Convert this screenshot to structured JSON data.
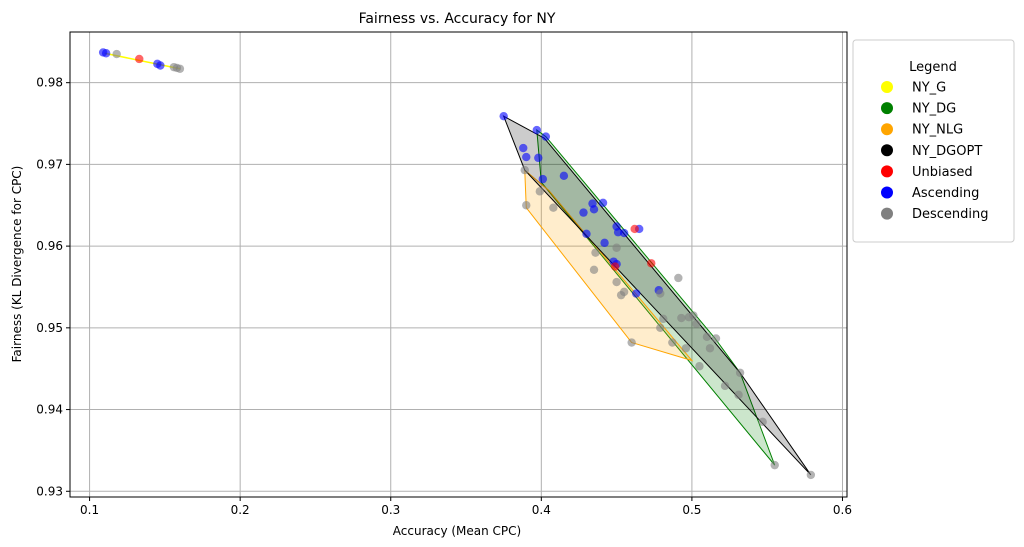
{
  "chart_data": {
    "type": "scatter",
    "title": "Fairness vs. Accuracy for NY",
    "xlabel": "Accuracy (Mean CPC)",
    "ylabel": "Fairness (KL Divergence for CPC)",
    "xlim": [
      0.087,
      0.603
    ],
    "ylim": [
      0.9293,
      0.9862
    ],
    "xticks": [
      0.1,
      0.2,
      0.3,
      0.4,
      0.5,
      0.6
    ],
    "yticks": [
      0.93,
      0.94,
      0.95,
      0.96,
      0.97,
      0.98
    ],
    "grid": true,
    "legend": {
      "title": "Legend",
      "placement": "outside-right-top",
      "entries": [
        {
          "label": "NY_G",
          "color": "#ffff00"
        },
        {
          "label": "NY_DG",
          "color": "#008000"
        },
        {
          "label": "NY_NLG",
          "color": "#ffa500"
        },
        {
          "label": "NY_DGOPT",
          "color": "#000000"
        },
        {
          "label": "Unbiased",
          "color": "#ff0000"
        },
        {
          "label": "Ascending",
          "color": "#0000ff"
        },
        {
          "label": "Descending",
          "color": "#808080"
        }
      ]
    },
    "hulls": [
      {
        "name": "NY_G",
        "color": "#ffff00",
        "points": [
          [
            0.11,
            0.9836
          ],
          [
            0.16,
            0.9817
          ]
        ]
      },
      {
        "name": "NY_DG",
        "color": "#008000",
        "points": [
          [
            0.397,
            0.9742
          ],
          [
            0.403,
            0.9734
          ],
          [
            0.515,
            0.9488
          ],
          [
            0.532,
            0.9445
          ],
          [
            0.555,
            0.9332
          ],
          [
            0.4,
            0.9678
          ]
        ]
      },
      {
        "name": "NY_NLG",
        "color": "#ffa500",
        "points": [
          [
            0.389,
            0.9693
          ],
          [
            0.405,
            0.9668
          ],
          [
            0.5,
            0.946
          ],
          [
            0.46,
            0.9482
          ],
          [
            0.39,
            0.9647
          ]
        ]
      },
      {
        "name": "NY_DGOPT",
        "color": "#000000",
        "points": [
          [
            0.375,
            0.9759
          ],
          [
            0.402,
            0.9732
          ],
          [
            0.532,
            0.9445
          ],
          [
            0.579,
            0.932
          ],
          [
            0.389,
            0.9693
          ]
        ]
      }
    ],
    "series": [
      {
        "name": "Ascending",
        "color": "#0000ff",
        "points": [
          [
            0.109,
            0.9837
          ],
          [
            0.111,
            0.9836
          ],
          [
            0.145,
            0.9823
          ],
          [
            0.147,
            0.9821
          ],
          [
            0.375,
            0.9759
          ],
          [
            0.388,
            0.972
          ],
          [
            0.39,
            0.9709
          ],
          [
            0.398,
            0.9708
          ],
          [
            0.397,
            0.9742
          ],
          [
            0.403,
            0.9734
          ],
          [
            0.401,
            0.9682
          ],
          [
            0.415,
            0.9686
          ],
          [
            0.434,
            0.9652
          ],
          [
            0.441,
            0.9653
          ],
          [
            0.435,
            0.9645
          ],
          [
            0.428,
            0.9641
          ],
          [
            0.45,
            0.9624
          ],
          [
            0.451,
            0.9617
          ],
          [
            0.455,
            0.9616
          ],
          [
            0.465,
            0.9621
          ],
          [
            0.43,
            0.9615
          ],
          [
            0.442,
            0.9604
          ],
          [
            0.448,
            0.9581
          ],
          [
            0.45,
            0.9578
          ],
          [
            0.463,
            0.9542
          ],
          [
            0.478,
            0.9546
          ]
        ]
      },
      {
        "name": "Descending",
        "color": "#808080",
        "points": [
          [
            0.118,
            0.9835
          ],
          [
            0.156,
            0.9819
          ],
          [
            0.158,
            0.9818
          ],
          [
            0.16,
            0.9817
          ],
          [
            0.389,
            0.9693
          ],
          [
            0.399,
            0.9667
          ],
          [
            0.408,
            0.9647
          ],
          [
            0.39,
            0.965
          ],
          [
            0.436,
            0.9592
          ],
          [
            0.45,
            0.9598
          ],
          [
            0.435,
            0.9571
          ],
          [
            0.45,
            0.9556
          ],
          [
            0.453,
            0.954
          ],
          [
            0.455,
            0.9544
          ],
          [
            0.479,
            0.9542
          ],
          [
            0.491,
            0.9561
          ],
          [
            0.481,
            0.9511
          ],
          [
            0.479,
            0.95
          ],
          [
            0.493,
            0.9512
          ],
          [
            0.498,
            0.9513
          ],
          [
            0.501,
            0.9515
          ],
          [
            0.503,
            0.9505
          ],
          [
            0.51,
            0.9489
          ],
          [
            0.516,
            0.9487
          ],
          [
            0.487,
            0.9482
          ],
          [
            0.496,
            0.9475
          ],
          [
            0.512,
            0.9475
          ],
          [
            0.46,
            0.9482
          ],
          [
            0.505,
            0.9453
          ],
          [
            0.532,
            0.9445
          ],
          [
            0.522,
            0.9429
          ],
          [
            0.531,
            0.9418
          ],
          [
            0.547,
            0.9385
          ],
          [
            0.555,
            0.9332
          ],
          [
            0.579,
            0.932
          ]
        ]
      },
      {
        "name": "Unbiased",
        "color": "#ff0000",
        "points": [
          [
            0.133,
            0.9829
          ],
          [
            0.462,
            0.9621
          ],
          [
            0.473,
            0.9579
          ],
          [
            0.449,
            0.9575
          ]
        ]
      }
    ]
  }
}
